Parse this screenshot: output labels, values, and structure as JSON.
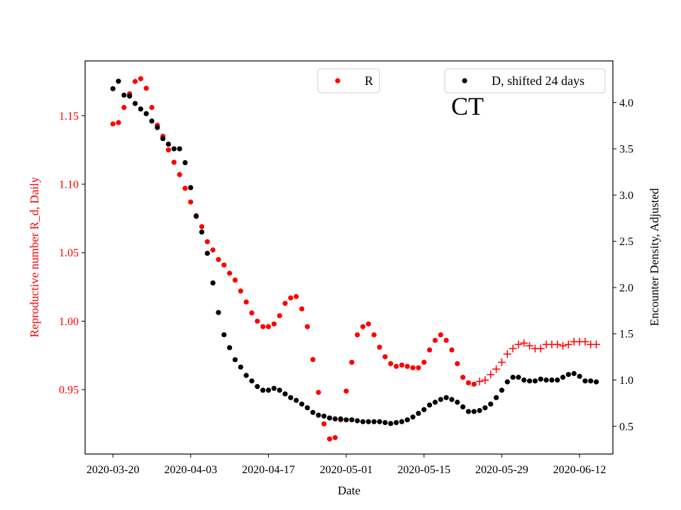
{
  "chart_data": {
    "type": "scatter",
    "annotation": "CT",
    "xlabel": "Date",
    "x_ticks": [
      "2020-03-20",
      "2020-04-03",
      "2020-04-17",
      "2020-05-01",
      "2020-05-15",
      "2020-05-29",
      "2020-06-12"
    ],
    "xlim": [
      "2020-03-15",
      "2020-06-18"
    ],
    "left_axis": {
      "label": "Reproductive number R_d, Daily",
      "color": "#ff0000",
      "lim": [
        0.903,
        1.19
      ],
      "ticks": [
        "0.95",
        "1.00",
        "1.05",
        "1.10",
        "1.15"
      ]
    },
    "right_axis": {
      "label": "Encounter Density, Adjusted",
      "color": "#000000",
      "lim": [
        0.2,
        4.45
      ],
      "ticks": [
        "0.5",
        "1.0",
        "1.5",
        "2.0",
        "2.5",
        "3.0",
        "3.5",
        "4.0"
      ]
    },
    "legend": [
      {
        "label": "R",
        "color": "#ff0000",
        "marker": "dot",
        "placement": "top-center"
      },
      {
        "label": "D, shifted 24 days",
        "color": "#000000",
        "marker": "dot",
        "placement": "top-right"
      }
    ],
    "series": [
      {
        "name": "R",
        "axis": "left",
        "color": "#ff0000",
        "marker": "dot",
        "x": [
          "2020-03-20",
          "2020-03-21",
          "2020-03-22",
          "2020-03-23",
          "2020-03-24",
          "2020-03-25",
          "2020-03-26",
          "2020-03-27",
          "2020-03-28",
          "2020-03-29",
          "2020-03-30",
          "2020-03-31",
          "2020-04-01",
          "2020-04-02",
          "2020-04-03",
          "2020-04-04",
          "2020-04-05",
          "2020-04-06",
          "2020-04-07",
          "2020-04-08",
          "2020-04-09",
          "2020-04-10",
          "2020-04-11",
          "2020-04-12",
          "2020-04-13",
          "2020-04-14",
          "2020-04-15",
          "2020-04-16",
          "2020-04-17",
          "2020-04-18",
          "2020-04-19",
          "2020-04-20",
          "2020-04-21",
          "2020-04-22",
          "2020-04-23",
          "2020-04-24",
          "2020-04-25",
          "2020-04-26",
          "2020-04-27",
          "2020-04-28",
          "2020-04-29",
          "2020-04-30",
          "2020-05-01",
          "2020-05-02",
          "2020-05-03",
          "2020-05-04",
          "2020-05-05",
          "2020-05-06",
          "2020-05-07",
          "2020-05-08",
          "2020-05-09",
          "2020-05-10",
          "2020-05-11",
          "2020-05-12",
          "2020-05-13",
          "2020-05-14",
          "2020-05-15",
          "2020-05-16",
          "2020-05-17",
          "2020-05-18",
          "2020-05-19",
          "2020-05-20",
          "2020-05-21",
          "2020-05-22",
          "2020-05-23",
          "2020-05-24"
        ],
        "y": [
          1.144,
          1.145,
          1.156,
          1.166,
          1.175,
          1.177,
          1.17,
          1.156,
          1.143,
          1.135,
          1.125,
          1.116,
          1.107,
          1.097,
          1.087,
          1.077,
          1.069,
          1.058,
          1.052,
          1.045,
          1.041,
          1.035,
          1.03,
          1.022,
          1.014,
          1.006,
          1.0,
          0.996,
          0.996,
          0.998,
          1.004,
          1.013,
          1.017,
          1.018,
          1.009,
          0.996,
          0.972,
          0.948,
          0.925,
          0.914,
          0.915,
          0.928,
          0.949,
          0.97,
          0.99,
          0.996,
          0.998,
          0.99,
          0.981,
          0.974,
          0.969,
          0.967,
          0.968,
          0.967,
          0.966,
          0.966,
          0.97,
          0.979,
          0.986,
          0.99,
          0.986,
          0.979,
          0.969,
          0.959,
          0.955,
          0.954
        ]
      },
      {
        "name": "R",
        "axis": "left",
        "color": "#ff0000",
        "marker": "plus",
        "x": [
          "2020-05-25",
          "2020-05-26",
          "2020-05-27",
          "2020-05-28",
          "2020-05-29",
          "2020-05-30",
          "2020-05-31",
          "2020-06-01",
          "2020-06-02",
          "2020-06-03",
          "2020-06-04",
          "2020-06-05",
          "2020-06-06",
          "2020-06-07",
          "2020-06-08",
          "2020-06-09",
          "2020-06-10",
          "2020-06-11",
          "2020-06-12",
          "2020-06-13",
          "2020-06-14",
          "2020-06-15"
        ],
        "y": [
          0.956,
          0.957,
          0.961,
          0.965,
          0.97,
          0.976,
          0.98,
          0.983,
          0.984,
          0.982,
          0.98,
          0.98,
          0.983,
          0.983,
          0.983,
          0.982,
          0.983,
          0.985,
          0.985,
          0.985,
          0.983,
          0.983
        ]
      },
      {
        "name": "D, shifted 24 days",
        "axis": "right",
        "color": "#000000",
        "marker": "dot",
        "x": [
          "2020-03-20",
          "2020-03-21",
          "2020-03-22",
          "2020-03-23",
          "2020-03-24",
          "2020-03-25",
          "2020-03-26",
          "2020-03-27",
          "2020-03-28",
          "2020-03-29",
          "2020-03-30",
          "2020-03-31",
          "2020-04-01",
          "2020-04-02",
          "2020-04-03",
          "2020-04-04",
          "2020-04-05",
          "2020-04-06",
          "2020-04-07",
          "2020-04-08",
          "2020-04-09",
          "2020-04-10",
          "2020-04-11",
          "2020-04-12",
          "2020-04-13",
          "2020-04-14",
          "2020-04-15",
          "2020-04-16",
          "2020-04-17",
          "2020-04-18",
          "2020-04-19",
          "2020-04-20",
          "2020-04-21",
          "2020-04-22",
          "2020-04-23",
          "2020-04-24",
          "2020-04-25",
          "2020-04-26",
          "2020-04-27",
          "2020-04-28",
          "2020-04-29",
          "2020-04-30",
          "2020-05-01",
          "2020-05-02",
          "2020-05-03",
          "2020-05-04",
          "2020-05-05",
          "2020-05-06",
          "2020-05-07",
          "2020-05-08",
          "2020-05-09",
          "2020-05-10",
          "2020-05-11",
          "2020-05-12",
          "2020-05-13",
          "2020-05-14",
          "2020-05-15",
          "2020-05-16",
          "2020-05-17",
          "2020-05-18",
          "2020-05-19",
          "2020-05-20",
          "2020-05-21",
          "2020-05-22",
          "2020-05-23",
          "2020-05-24",
          "2020-05-25",
          "2020-05-26",
          "2020-05-27",
          "2020-05-28",
          "2020-05-29",
          "2020-05-30",
          "2020-05-31",
          "2020-06-01",
          "2020-06-02",
          "2020-06-03",
          "2020-06-04",
          "2020-06-05",
          "2020-06-06",
          "2020-06-07",
          "2020-06-08",
          "2020-06-09",
          "2020-06-10",
          "2020-06-11",
          "2020-06-12",
          "2020-06-13",
          "2020-06-14",
          "2020-06-15"
        ],
        "y": [
          4.15,
          4.23,
          4.08,
          4.07,
          3.99,
          3.93,
          3.88,
          3.8,
          3.73,
          3.61,
          3.55,
          3.5,
          3.5,
          3.35,
          3.08,
          2.77,
          2.6,
          2.37,
          2.05,
          1.73,
          1.49,
          1.35,
          1.22,
          1.14,
          1.05,
          0.99,
          0.93,
          0.89,
          0.89,
          0.91,
          0.89,
          0.85,
          0.81,
          0.78,
          0.74,
          0.7,
          0.65,
          0.62,
          0.61,
          0.59,
          0.58,
          0.58,
          0.57,
          0.57,
          0.56,
          0.55,
          0.55,
          0.55,
          0.55,
          0.54,
          0.53,
          0.54,
          0.55,
          0.57,
          0.6,
          0.64,
          0.68,
          0.73,
          0.76,
          0.79,
          0.81,
          0.79,
          0.76,
          0.71,
          0.66,
          0.66,
          0.67,
          0.7,
          0.74,
          0.81,
          0.89,
          0.98,
          1.03,
          1.03,
          1.0,
          0.99,
          0.99,
          1.01,
          1.0,
          1.0,
          1.0,
          1.03,
          1.06,
          1.07,
          1.04,
          0.99,
          0.99,
          0.98
        ]
      }
    ]
  }
}
